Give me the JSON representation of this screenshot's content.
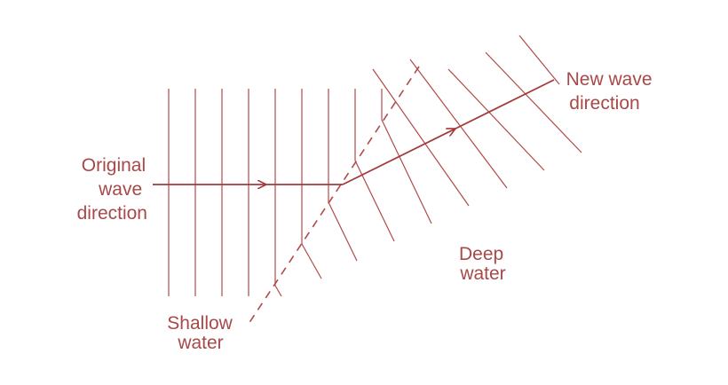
{
  "colors": {
    "ink": "#a84848"
  },
  "labels": {
    "original_direction": [
      "Original",
      "wave",
      "direction"
    ],
    "new_direction": [
      "New wave",
      "direction"
    ],
    "deep_water": [
      "Deep",
      "water"
    ],
    "shallow_water": [
      "Shallow",
      "water"
    ]
  }
}
